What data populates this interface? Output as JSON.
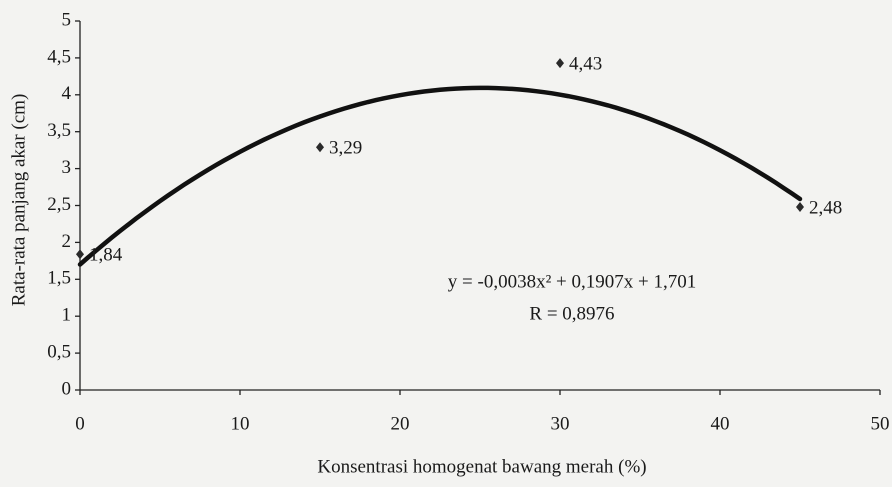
{
  "chart_data": {
    "type": "scatter",
    "x_label": "Konsentrasi homogenat bawang merah (%)",
    "y_label": "Rata-rata panjang akar (cm)",
    "x": [
      0,
      15,
      30,
      45
    ],
    "values": [
      1.84,
      3.29,
      4.43,
      2.48
    ],
    "value_labels": [
      "1,84",
      "3,29",
      "4,43",
      "2,48"
    ],
    "color": "#2a2a2a",
    "xlim": [
      0,
      50
    ],
    "xticks": [
      0,
      10,
      20,
      30,
      40,
      50
    ],
    "ylim": [
      0,
      5
    ],
    "yticks": [
      0,
      {
        "value": 0.5,
        "label": "0,5"
      },
      1,
      {
        "value": 1.5,
        "label": "1,5"
      },
      2,
      {
        "value": 2.5,
        "label": "2,5"
      },
      3,
      {
        "value": 3.5,
        "label": "3,5"
      },
      4,
      {
        "value": 4.5,
        "label": "4,5"
      },
      5
    ],
    "trendline": {
      "coefficients": [
        -0.0038,
        0.1907,
        1.701
      ],
      "color": "#111111",
      "equation": "y = -0,0038x² + 0,1907x + 1,701",
      "r_label": "R = 0,8976"
    }
  }
}
